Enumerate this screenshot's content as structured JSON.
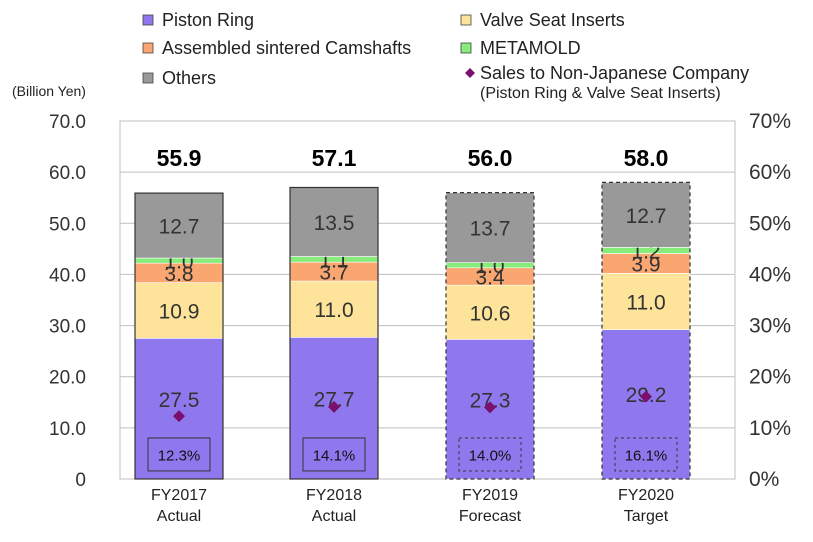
{
  "chart_data": {
    "type": "bar",
    "stacked": true,
    "unit_label": "(Billion Yen)",
    "categories": [
      [
        "FY2017",
        "Actual"
      ],
      [
        "FY2018",
        "Actual"
      ],
      [
        "FY2019",
        "Forecast"
      ],
      [
        "FY2020",
        "Target"
      ]
    ],
    "projected": [
      false,
      false,
      true,
      true
    ],
    "series": [
      {
        "name": "Piston Ring",
        "color": "#8f78ee",
        "values": [
          27.5,
          27.7,
          27.3,
          29.2
        ]
      },
      {
        "name": "Valve Seat Inserts",
        "color": "#fde49a",
        "values": [
          10.9,
          11.0,
          10.6,
          11.0
        ]
      },
      {
        "name": "Assembled sintered Camshafts",
        "color": "#f9a670",
        "values": [
          3.8,
          3.7,
          3.4,
          3.9
        ]
      },
      {
        "name": "METAMOLD",
        "color": "#86ec7a",
        "values": [
          1.0,
          1.1,
          1.0,
          1.2
        ]
      },
      {
        "name": "Others",
        "color": "#999999",
        "values": [
          12.7,
          13.5,
          13.7,
          12.7
        ]
      }
    ],
    "totals": [
      "55.9",
      "57.1",
      "56.0",
      "58.0"
    ],
    "segment_labels": [
      [
        "27.5",
        "10.9",
        "3.8",
        "1.0",
        "12.7"
      ],
      [
        "27.7",
        "11.0",
        "3.7",
        "1.1",
        "13.5"
      ],
      [
        "27.3",
        "10.6",
        "3.4",
        "1.0",
        "13.7"
      ],
      [
        "29.2",
        "11.0",
        "3.9",
        "1.2",
        "12.7"
      ]
    ],
    "line_series": {
      "name": "Sales to Non-Japanese Company",
      "name_sub": "(Piston Ring & Valve Seat Inserts)",
      "color": "#7b0f6e",
      "marker": "diamond",
      "axis": "right",
      "values": [
        12.3,
        14.1,
        14.0,
        16.1
      ],
      "labels": [
        "12.3%",
        "14.1%",
        "14.0%",
        "16.1%"
      ]
    },
    "y_left": {
      "ylim": [
        0,
        70
      ],
      "ticks": [
        "0",
        "10.0",
        "20.0",
        "30.0",
        "40.0",
        "50.0",
        "60.0",
        "70.0"
      ]
    },
    "y_right": {
      "ylim": [
        0,
        70
      ],
      "ticks": [
        "0%",
        "10%",
        "20%",
        "30%",
        "40%",
        "50%",
        "60%",
        "70%"
      ]
    },
    "grid": true,
    "legend_position": "top"
  }
}
